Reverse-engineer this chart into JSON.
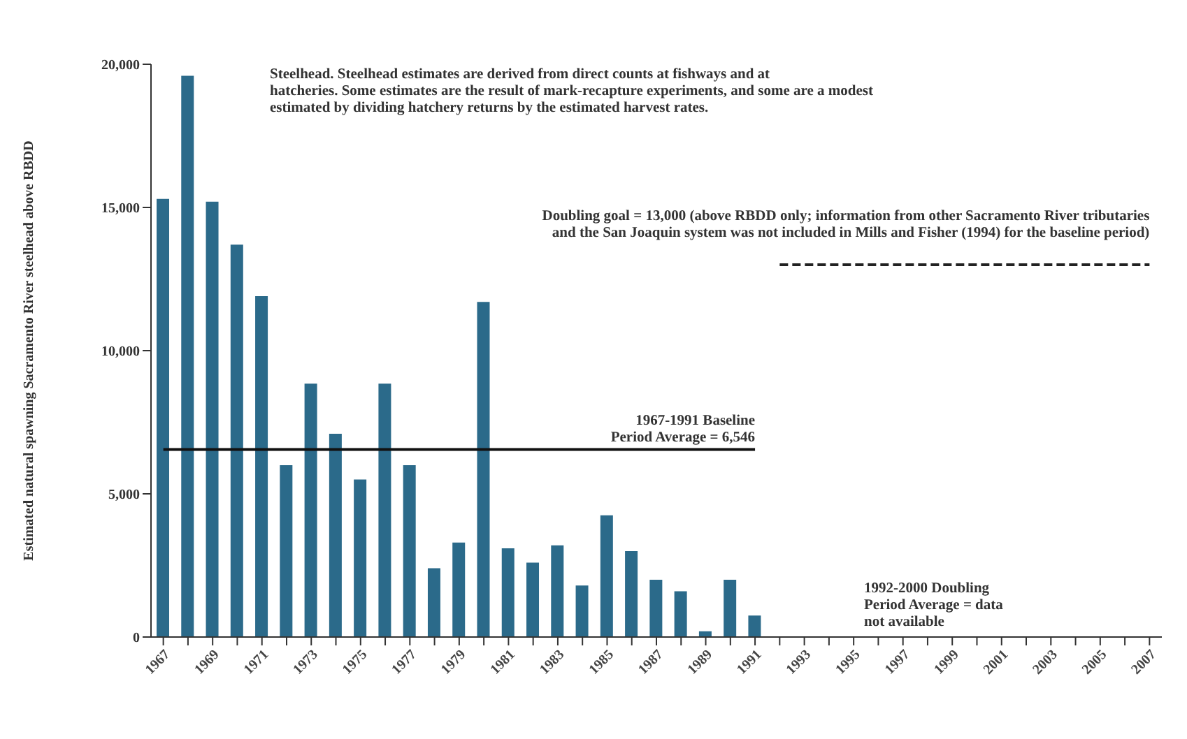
{
  "chart_data": {
    "type": "bar",
    "ylabel": "Estimated natural spawning Sacramento River steelhead above RBDD",
    "categories": [
      "1967",
      null,
      "1969",
      null,
      "1971",
      null,
      "1973",
      null,
      "1975",
      null,
      "1977",
      null,
      "1979",
      null,
      "1981",
      null,
      "1983",
      null,
      "1985",
      null,
      "1987",
      null,
      "1989",
      null,
      "1991",
      null,
      "1993",
      null,
      "1995",
      null,
      "1997",
      null,
      "1999",
      null,
      "2001",
      null,
      "2003",
      null,
      "2005",
      null,
      "2007"
    ],
    "values": [
      15300,
      19600,
      15200,
      13700,
      11900,
      6000,
      8850,
      7100,
      5500,
      8850,
      6000,
      2400,
      3300,
      11700,
      3100,
      2600,
      3200,
      1800,
      4250,
      3000,
      2000,
      1600,
      200,
      2000,
      750,
      null,
      null,
      null,
      null,
      null,
      null,
      null,
      null,
      null,
      null,
      null,
      null,
      null,
      null,
      null,
      null
    ],
    "color": "#2b6a8a",
    "ylim": [
      0,
      20000
    ],
    "yticks": [
      0,
      {
        "value": 5000,
        "label": "5,000"
      },
      {
        "value": 10000,
        "label": "10,000"
      },
      {
        "value": 15000,
        "label": "15,000"
      },
      {
        "value": 20000,
        "label": "20,000"
      }
    ],
    "ref_lines": [
      {
        "axis": "y",
        "value": 6546,
        "label": "1967-1991 Baseline\nPeriod Average = 6,546",
        "color": "#111111",
        "line_style": "solid"
      },
      {
        "axis": "y",
        "value": 13000,
        "label": "Doubling goal = 13,000 (above RBDD only; information from other Sacramento River tributaries\nand the San Joaquin system was not included in Mills and Fisher (1994) for the baseline period)",
        "color": "#222222",
        "line_style": "dashed"
      }
    ],
    "annotations": [
      "Steelhead. Steelhead estimates are derived from direct counts at fishways and at\nhatcheries. Some estimates are the result of mark-recapture experiments, and some are a modest\nestimated by dividing hatchery returns by the estimated harvest rates.",
      "1992-2000 Doubling\nPeriod Average = data\nnot available"
    ]
  }
}
